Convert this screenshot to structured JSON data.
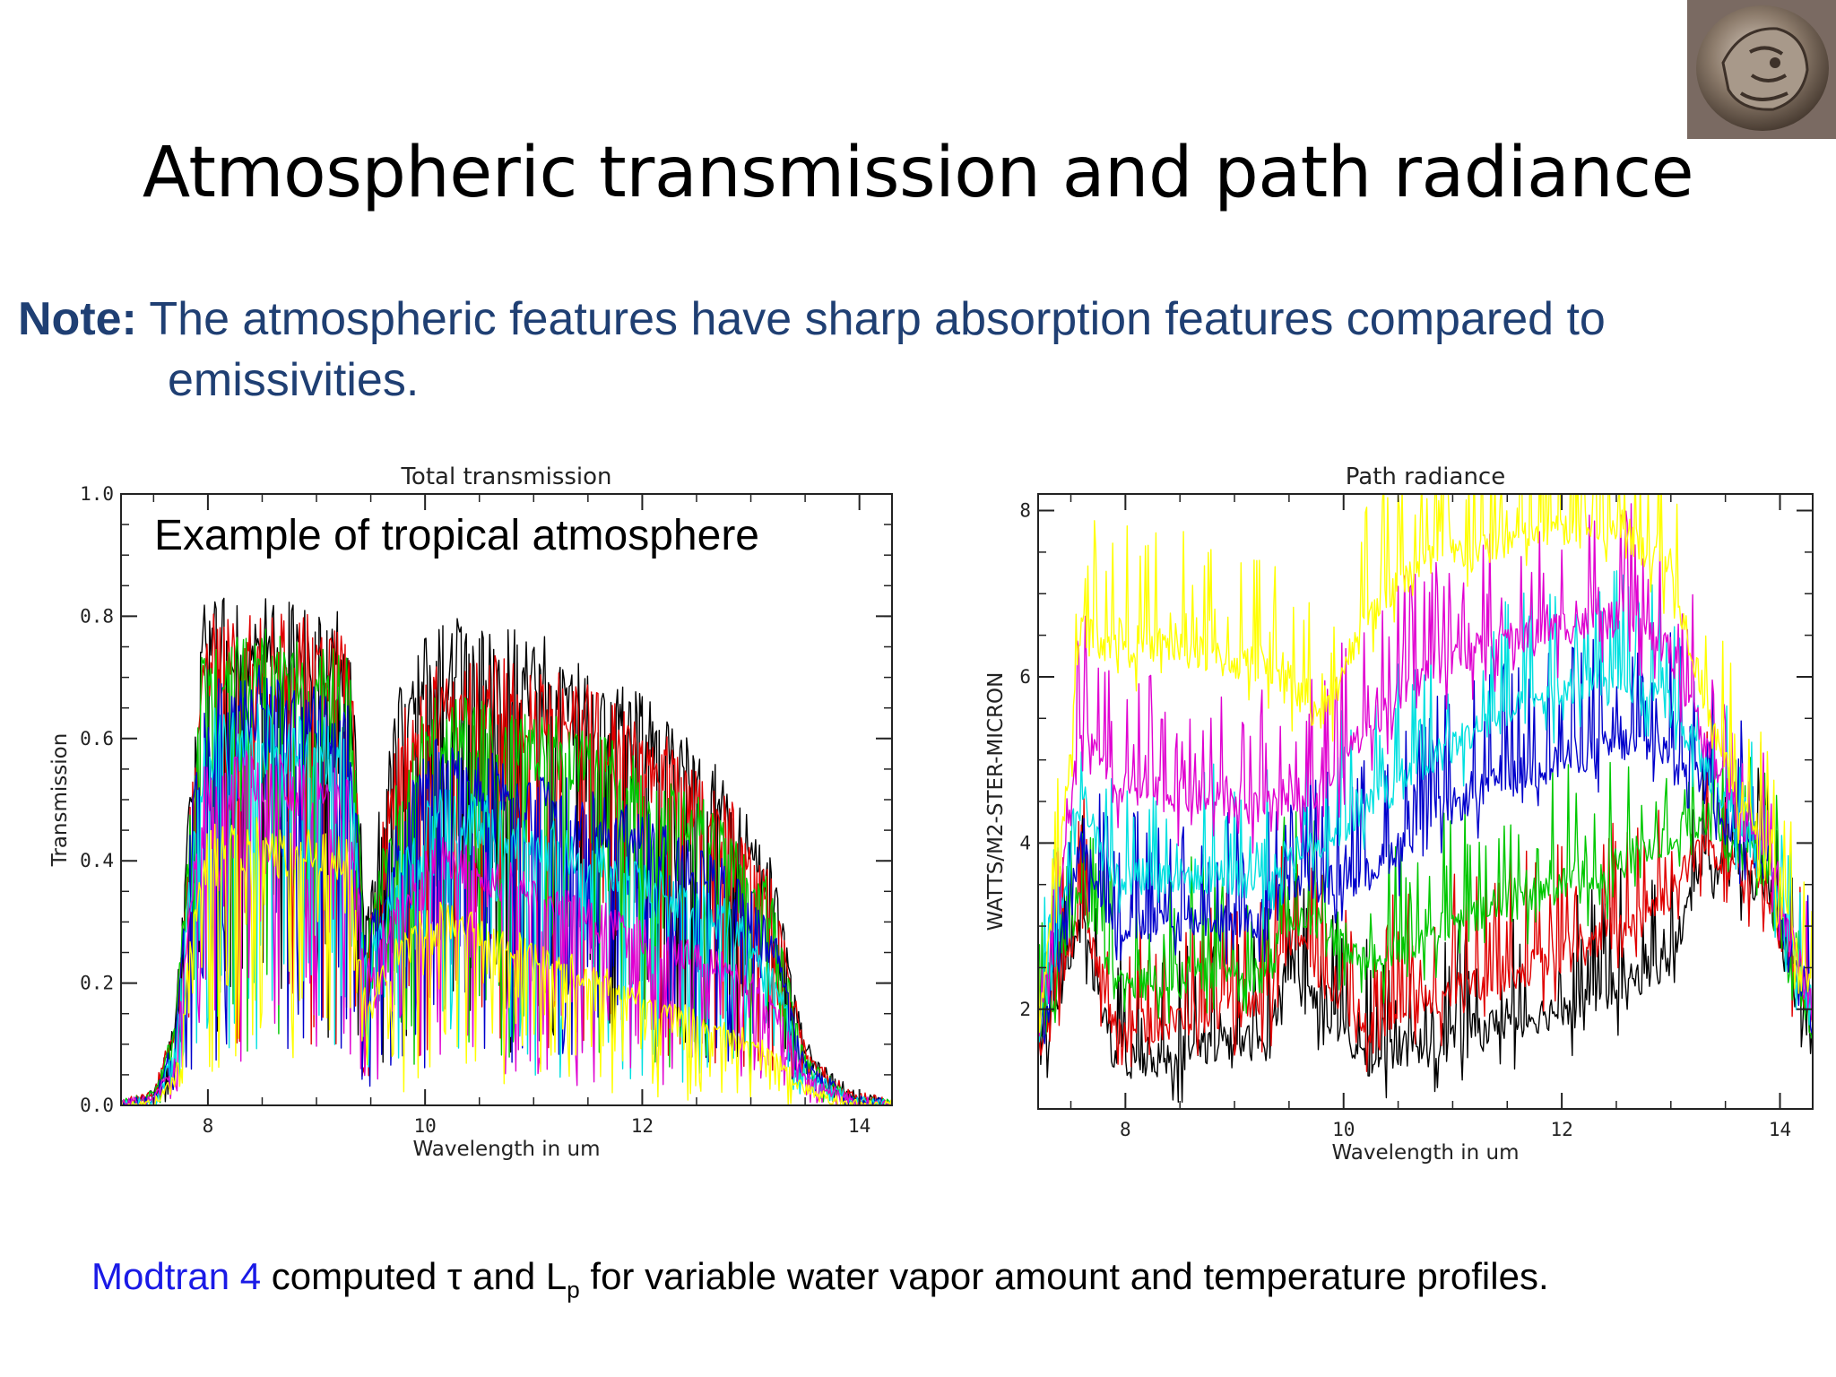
{
  "slide": {
    "title": "Atmospheric transmission and path radiance",
    "note_label": "Note:",
    "note_line1": " The atmospheric features have sharp absorption features compared to",
    "note_line2": "emissivities.",
    "caption_link": "Modtran 4",
    "caption_a": " computed τ and L",
    "caption_sub": "p",
    "caption_b": " for variable water vapor amount and temperature profiles.",
    "colors": {
      "title_text": "#000000",
      "note_text": "#1f3f73",
      "caption_link": "#1a1ae6"
    },
    "logo": "ancient-coin-image"
  },
  "chart_data": [
    {
      "type": "line",
      "title": "Total transmission",
      "annotation": "Example of tropical atmosphere",
      "xlabel": "Wavelength in um",
      "ylabel": "Transmission",
      "xlim": [
        7.2,
        14.3
      ],
      "ylim": [
        0.0,
        1.0
      ],
      "xticks": [
        8,
        10,
        12,
        14
      ],
      "xtick_labels": [
        "8",
        "10",
        "12",
        "14"
      ],
      "yticks": [
        0.0,
        0.2,
        0.4,
        0.6,
        0.8,
        1.0
      ],
      "ytick_labels": [
        "0.0",
        "0.2",
        "0.4",
        "0.6",
        "0.8",
        "1.0"
      ],
      "grid": false,
      "series_envelope_x": [
        7.2,
        7.5,
        7.7,
        7.95,
        8.3,
        8.9,
        9.3,
        9.45,
        9.75,
        10.1,
        10.6,
        11.2,
        11.8,
        12.3,
        12.8,
        13.2,
        13.5,
        13.9,
        14.3
      ],
      "series": [
        {
          "color": "#000000",
          "envelope": [
            0.0,
            0.02,
            0.15,
            0.83,
            0.83,
            0.83,
            0.8,
            0.32,
            0.68,
            0.8,
            0.8,
            0.76,
            0.7,
            0.62,
            0.53,
            0.4,
            0.1,
            0.02,
            0.0
          ]
        },
        {
          "color": "#e00000",
          "envelope": [
            0.0,
            0.02,
            0.14,
            0.8,
            0.81,
            0.8,
            0.77,
            0.3,
            0.62,
            0.74,
            0.74,
            0.71,
            0.66,
            0.59,
            0.5,
            0.38,
            0.09,
            0.02,
            0.0
          ]
        },
        {
          "color": "#00c800",
          "envelope": [
            0.0,
            0.02,
            0.13,
            0.76,
            0.78,
            0.76,
            0.74,
            0.28,
            0.55,
            0.68,
            0.66,
            0.63,
            0.59,
            0.53,
            0.46,
            0.35,
            0.08,
            0.01,
            0.0
          ]
        },
        {
          "color": "#0000cc",
          "envelope": [
            0.0,
            0.01,
            0.12,
            0.7,
            0.72,
            0.7,
            0.68,
            0.26,
            0.48,
            0.6,
            0.57,
            0.54,
            0.5,
            0.45,
            0.4,
            0.3,
            0.07,
            0.01,
            0.0
          ]
        },
        {
          "color": "#00e0e0",
          "envelope": [
            0.0,
            0.01,
            0.1,
            0.64,
            0.66,
            0.64,
            0.62,
            0.24,
            0.42,
            0.52,
            0.5,
            0.46,
            0.42,
            0.37,
            0.33,
            0.25,
            0.06,
            0.01,
            0.0
          ]
        },
        {
          "color": "#e000d0",
          "envelope": [
            0.0,
            0.01,
            0.08,
            0.56,
            0.58,
            0.56,
            0.55,
            0.22,
            0.36,
            0.44,
            0.41,
            0.37,
            0.32,
            0.28,
            0.24,
            0.18,
            0.05,
            0.01,
            0.0
          ]
        },
        {
          "color": "#ffff00",
          "envelope": [
            0.0,
            0.0,
            0.05,
            0.45,
            0.47,
            0.45,
            0.44,
            0.18,
            0.28,
            0.34,
            0.3,
            0.26,
            0.21,
            0.17,
            0.13,
            0.09,
            0.03,
            0.0,
            0.0
          ]
        }
      ]
    },
    {
      "type": "line",
      "title": "Path radiance",
      "xlabel": "Wavelength in um",
      "ylabel": "WATTS/M2-STER-MICRON",
      "xlim": [
        7.2,
        14.3
      ],
      "ylim": [
        0.8,
        8.2
      ],
      "xticks": [
        8,
        10,
        12,
        14
      ],
      "xtick_labels": [
        "8",
        "10",
        "12",
        "14"
      ],
      "yticks": [
        2,
        4,
        6,
        8
      ],
      "ytick_labels": [
        "2",
        "4",
        "6",
        "8"
      ],
      "grid": false,
      "series_envelope_x": [
        7.2,
        7.4,
        7.6,
        7.9,
        8.3,
        8.9,
        9.3,
        9.5,
        9.8,
        10.2,
        10.8,
        11.4,
        12.0,
        12.6,
        13.0,
        13.3,
        13.6,
        13.9,
        14.0,
        14.3
      ],
      "series": [
        {
          "color": "#000000",
          "envelope": [
            1.4,
            2.2,
            3.0,
            1.4,
            1.4,
            1.6,
            1.6,
            2.6,
            2.0,
            1.4,
            1.6,
            1.8,
            2.0,
            2.3,
            2.6,
            3.8,
            3.6,
            3.4,
            2.8,
            1.6
          ]
        },
        {
          "color": "#e00000",
          "envelope": [
            1.5,
            2.3,
            3.2,
            1.8,
            1.8,
            2.0,
            2.0,
            2.8,
            2.4,
            1.8,
            2.1,
            2.4,
            2.6,
            3.0,
            3.4,
            4.0,
            3.7,
            3.4,
            2.9,
            1.7
          ]
        },
        {
          "color": "#00c800",
          "envelope": [
            1.5,
            2.5,
            3.5,
            2.3,
            2.3,
            2.5,
            2.4,
            3.1,
            3.0,
            2.5,
            2.9,
            3.2,
            3.5,
            3.8,
            4.1,
            4.3,
            3.9,
            3.6,
            3.0,
            1.8
          ]
        },
        {
          "color": "#0000cc",
          "envelope": [
            1.6,
            2.8,
            4.0,
            3.0,
            3.0,
            3.1,
            3.0,
            3.5,
            3.5,
            3.6,
            4.3,
            4.7,
            5.0,
            5.2,
            5.1,
            4.7,
            4.1,
            3.7,
            3.1,
            1.9
          ]
        },
        {
          "color": "#00e0e0",
          "envelope": [
            1.6,
            3.0,
            4.6,
            3.6,
            3.6,
            3.6,
            3.5,
            3.9,
            4.0,
            4.4,
            5.0,
            5.5,
            5.8,
            5.9,
            5.6,
            5.0,
            4.2,
            3.8,
            3.2,
            2.0
          ]
        },
        {
          "color": "#e000d0",
          "envelope": [
            1.7,
            3.3,
            5.4,
            4.6,
            4.6,
            4.5,
            4.4,
            4.6,
            4.6,
            5.4,
            6.1,
            6.4,
            6.6,
            6.7,
            6.3,
            5.3,
            4.3,
            3.9,
            3.3,
            2.0
          ]
        },
        {
          "color": "#ffff00",
          "envelope": [
            1.8,
            3.8,
            6.6,
            6.4,
            6.4,
            6.2,
            6.1,
            6.0,
            5.4,
            6.8,
            7.4,
            7.6,
            7.8,
            7.7,
            7.3,
            5.8,
            4.5,
            4.0,
            3.4,
            2.1
          ]
        }
      ]
    }
  ]
}
